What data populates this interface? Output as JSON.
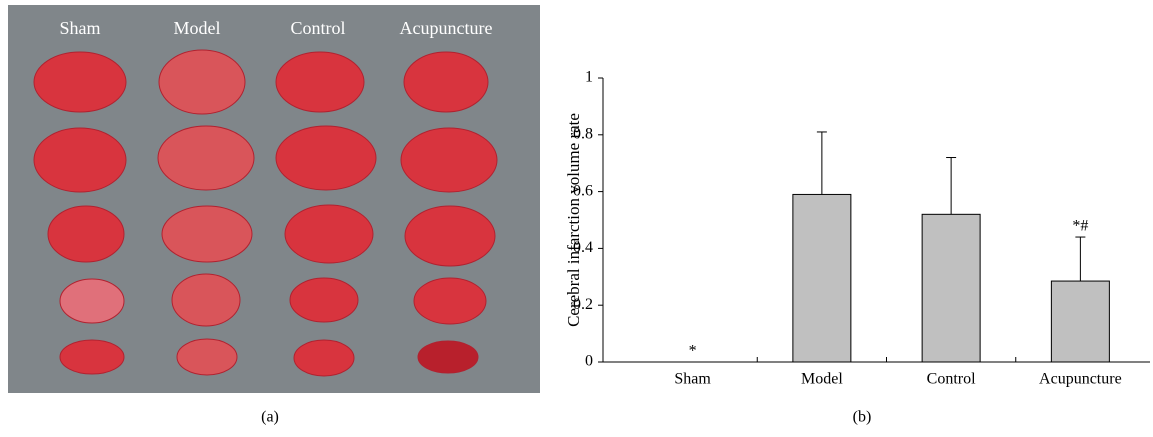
{
  "photo_panel": {
    "column_labels": [
      "Sham",
      "Model",
      "Control",
      "Acupuncture"
    ],
    "caption": "(a)"
  },
  "chart_data": {
    "type": "bar",
    "caption": "(b)",
    "y_label": "Cerebral infarction volume rate",
    "categories": [
      "Sham",
      "Model",
      "Control",
      "Acupuncture"
    ],
    "values": [
      0,
      0.59,
      0.52,
      0.285
    ],
    "errors": [
      null,
      0.22,
      0.2,
      0.155
    ],
    "annotations": [
      "*",
      null,
      null,
      "*#"
    ],
    "color": "#c0c0c0",
    "ylim": [
      0,
      1
    ],
    "yticks": [
      0,
      0.2,
      0.4,
      0.6,
      0.8,
      1
    ]
  }
}
